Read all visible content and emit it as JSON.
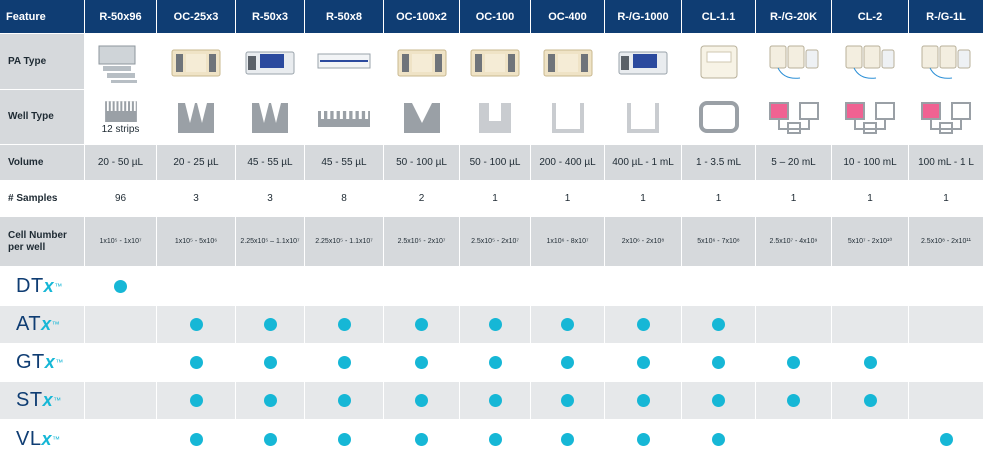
{
  "header": {
    "feature": "Feature",
    "columns": [
      "R-50x96",
      "OC-25x3",
      "R-50x3",
      "R-50x8",
      "OC-100x2",
      "OC-100",
      "OC-400",
      "R-/G-1000",
      "CL-1.1",
      "R-/G-20K",
      "CL-2",
      "R-/G-1L"
    ]
  },
  "rows": {
    "pa_type": "PA Type",
    "well_type": "Well Type",
    "volume": "Volume",
    "samples": "# Samples",
    "cell_number": "Cell Number per well"
  },
  "well_type_caption": "12 strips",
  "volume": [
    "20 - 50 µL",
    "20 - 25 µL",
    "45 - 55 µL",
    "45 - 55 µL",
    "50 - 100 µL",
    "50 - 100 µL",
    "200 - 400 µL",
    "400 µL - 1 mL",
    "1 - 3.5 mL",
    "5 – 20 mL",
    "10 - 100 mL",
    "100 mL - 1 L"
  ],
  "samples": [
    "96",
    "3",
    "3",
    "8",
    "2",
    "1",
    "1",
    "1",
    "1",
    "1",
    "1",
    "1"
  ],
  "cell_number": [
    "1x10⁵ - 1x10⁷",
    "1x10⁵ - 5x10⁶",
    "2.25x10⁵ – 1.1x10⁷",
    "2.25x10⁵ - 1.1x10⁷",
    "2.5x10⁵ - 2x10⁷",
    "2.5x10⁵ - 2x10⁷",
    "1x10⁶ - 8x10⁷",
    "2x10⁶ - 2x10⁸",
    "5x10⁶ - 7x10⁸",
    "2.5x10⁷ - 4x10⁹",
    "5x10⁷ - 2x10¹⁰",
    "2.5x10⁸ - 2x10¹¹"
  ],
  "products": [
    {
      "name": "DT",
      "suffix": "x",
      "mark": "™",
      "available": [
        true,
        false,
        false,
        false,
        false,
        false,
        false,
        false,
        false,
        false,
        false,
        false
      ]
    },
    {
      "name": "AT",
      "suffix": "x",
      "mark": "™",
      "available": [
        false,
        true,
        true,
        true,
        true,
        true,
        true,
        true,
        true,
        false,
        false,
        false
      ]
    },
    {
      "name": "GT",
      "suffix": "x",
      "mark": "™",
      "available": [
        false,
        true,
        true,
        true,
        true,
        true,
        true,
        true,
        true,
        true,
        true,
        false
      ]
    },
    {
      "name": "ST",
      "suffix": "x",
      "mark": "™",
      "available": [
        false,
        true,
        true,
        true,
        true,
        true,
        true,
        true,
        true,
        true,
        true,
        false
      ]
    },
    {
      "name": "VL",
      "suffix": "x",
      "mark": "™",
      "available": [
        false,
        true,
        true,
        true,
        true,
        true,
        true,
        true,
        true,
        false,
        false,
        true
      ]
    }
  ],
  "colors": {
    "header": "#0f3d73",
    "accent": "#16b7d6",
    "row_gray": "#d6d9dc"
  },
  "icons": [
    "strips-plate-image",
    "cassette-image",
    "blue-cassette-image",
    "tray-image",
    "cassette-image",
    "cassette-image",
    "cassette-image",
    "blue-cassette-image",
    "bag-image",
    "bag-set-image",
    "bag-set-image",
    "bag-set-image"
  ]
}
